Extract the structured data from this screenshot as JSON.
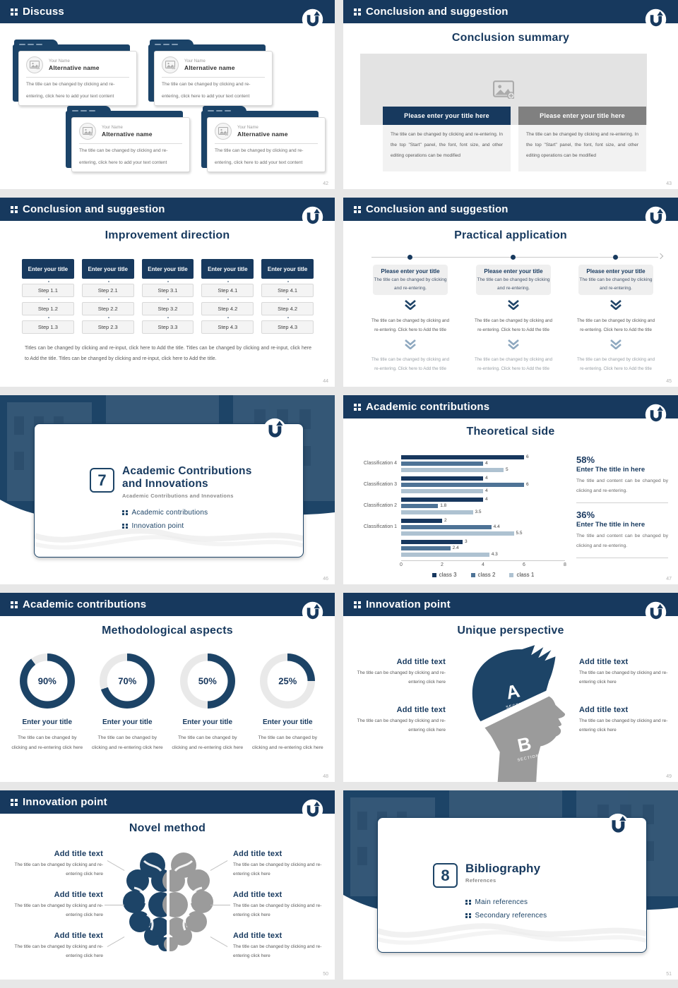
{
  "brand": {
    "accent": "#17395e",
    "accent_mid": "#4e7396",
    "accent_light": "#aec2d1",
    "gray_button": "#808080",
    "divider_blue": "#1d4467"
  },
  "slides": [
    {
      "number": "42",
      "header": "Discuss",
      "cards": [
        {
          "name": "Your Name",
          "alt": "Alternative name",
          "body": "The title can be changed by clicking and re-entering, click here to add your text content"
        },
        {
          "name": "Your Name",
          "alt": "Alternative name",
          "body": "The title can be changed by clicking and re-entering, click here to add your text content"
        },
        {
          "name": "Your Name",
          "alt": "Alternative name",
          "body": "The title can be changed by clicking and re-entering, click here to add your text content"
        },
        {
          "name": "Your Name",
          "alt": "Alternative name",
          "body": "The title can be changed by clicking and re-entering, click here to add your text content"
        }
      ]
    },
    {
      "number": "43",
      "header": "Conclusion and suggestion",
      "title": "Conclusion summary",
      "columns": [
        {
          "button": "Please enter your title here",
          "body": "The title can be changed by clicking and re-entering. In the top \"Start\" panel, the font, font size, and other editing operations can be modified"
        },
        {
          "button": "Please enter your title here",
          "body": "The title can be changed by clicking and re-entering. In the top \"Start\" panel, the font, font size, and other editing operations can be modified"
        }
      ]
    },
    {
      "number": "44",
      "header": "Conclusion and suggestion",
      "title": "Improvement direction",
      "columns": [
        {
          "title": "Enter your title",
          "steps": [
            "Step 1.1",
            "Step 1.2",
            "Step 1.3"
          ]
        },
        {
          "title": "Enter your title",
          "steps": [
            "Step 2.1",
            "Step 2.2",
            "Step 2.3"
          ]
        },
        {
          "title": "Enter your title",
          "steps": [
            "Step 3.1",
            "Step 3.2",
            "Step 3.3"
          ]
        },
        {
          "title": "Enter your title",
          "steps": [
            "Step 4.1",
            "Step 4.2",
            "Step 4.3"
          ]
        },
        {
          "title": "Enter your title",
          "steps": [
            "Step 4.1",
            "Step 4.2",
            "Step 4.3"
          ]
        }
      ],
      "footer": "Titles can be changed by clicking and re-input, click here to Add the title. Titles can be changed by clicking and re-input, click here to Add the title. Titles can be changed by clicking and re-input, click here to Add the title."
    },
    {
      "number": "45",
      "header": "Conclusion and suggestion",
      "title": "Practical application",
      "columns": [
        {
          "box_title": "Please enter your title",
          "box_body": "The title can be changed by clicking and re-entering.",
          "step1": "The title can be changed by clicking and re-entering. Click here to Add the title",
          "step2": "The title can be changed by clicking and re-entering. Click here to Add the title"
        },
        {
          "box_title": "Please enter your title",
          "box_body": "The title can be changed by clicking and re-entering.",
          "step1": "The title can be changed by clicking and re-entering. Click here to Add the title",
          "step2": "The title can be changed by clicking and re-entering. Click here to Add the title"
        },
        {
          "box_title": "Please enter your title",
          "box_body": "The title can be changed by clicking and re-entering.",
          "step1": "The title can be changed by clicking and re-entering. Click here to Add the title",
          "step2": "The title can be changed by clicking and re-entering. Click here to Add the title"
        }
      ]
    },
    {
      "number": "46",
      "chapter": "7",
      "title_line1": "Academic Contributions",
      "title_line2": "and Innovations",
      "subtitle": "Academic Contributions and Innovations",
      "items": [
        "Academic contributions",
        "Innovation point"
      ]
    },
    {
      "number": "47",
      "header": "Academic contributions",
      "stats": [
        {
          "percent": "58%",
          "title": "Enter The title in here",
          "body": "The title and content can be changed by clicking and re-entering."
        },
        {
          "percent": "36%",
          "title": "Enter The title in here",
          "body": "The title and content can be changed by clicking and re-entering."
        }
      ]
    },
    {
      "number": "48",
      "header": "Academic contributions",
      "title": "Methodological aspects",
      "donuts": [
        {
          "percent": 90,
          "label": "90%",
          "title": "Enter your title",
          "body": "The title can be changed by clicking and re-entering click here"
        },
        {
          "percent": 70,
          "label": "70%",
          "title": "Enter your title",
          "body": "The title can be changed by clicking and re-entering click here"
        },
        {
          "percent": 50,
          "label": "50%",
          "title": "Enter your title",
          "body": "The title can be changed by clicking and re-entering click here"
        },
        {
          "percent": 25,
          "label": "25%",
          "title": "Enter your title",
          "body": "The title can be changed by clicking and re-entering click here"
        }
      ]
    },
    {
      "number": "49",
      "header": "Innovation point",
      "title": "Unique perspective",
      "sections": [
        {
          "letter": "A",
          "word": "SECTION"
        },
        {
          "letter": "B",
          "word": "SECTION"
        }
      ],
      "blocks": [
        {
          "title": "Add title text",
          "body": "The title can be changed by clicking and re-entering click here"
        },
        {
          "title": "Add title text",
          "body": "The title can be changed by clicking and re-entering click here"
        },
        {
          "title": "Add title text",
          "body": "The title can be changed by clicking and re-entering click here"
        },
        {
          "title": "Add title text",
          "body": "The title can be changed by clicking and re-entering click here"
        }
      ]
    },
    {
      "number": "50",
      "header": "Innovation point",
      "title": "Novel method",
      "blocks": [
        {
          "title": "Add title text",
          "body": "The title can be changed by clicking and re-entering click here"
        },
        {
          "title": "Add title text",
          "body": "The title can be changed by clicking and re-entering click here"
        },
        {
          "title": "Add title text",
          "body": "The title can be changed by clicking and re-entering click here"
        },
        {
          "title": "Add title text",
          "body": "The title can be changed by clicking and re-entering click here"
        },
        {
          "title": "Add title text",
          "body": "The title can be changed by clicking and re-entering click here"
        },
        {
          "title": "Add title text",
          "body": "The title can be changed by clicking and re-entering click here"
        }
      ]
    },
    {
      "number": "51",
      "chapter": "8",
      "title_line1": "Bibliography",
      "subtitle": "References",
      "items": [
        "Main references",
        "Secondary references"
      ]
    }
  ],
  "chart_data": {
    "type": "bar",
    "orientation": "horizontal",
    "title": "Theoretical side",
    "categories": [
      "Classification 4",
      "Classification 3",
      "Classification 2",
      "Classification 1",
      ""
    ],
    "series": [
      {
        "name": "class 3",
        "color": "#17375e",
        "values": [
          6,
          4,
          4,
          2,
          3
        ]
      },
      {
        "name": "class 2",
        "color": "#4e7396",
        "values": [
          4,
          6,
          1.8,
          4.4,
          2.4
        ]
      },
      {
        "name": "class 1",
        "color": "#aec2d1",
        "values": [
          5,
          4,
          3.5,
          5.5,
          4.3
        ]
      }
    ],
    "xlim": [
      0,
      8
    ],
    "xticks": [
      0,
      2,
      4,
      6,
      8
    ],
    "grid": false,
    "legend_position": "bottom"
  }
}
